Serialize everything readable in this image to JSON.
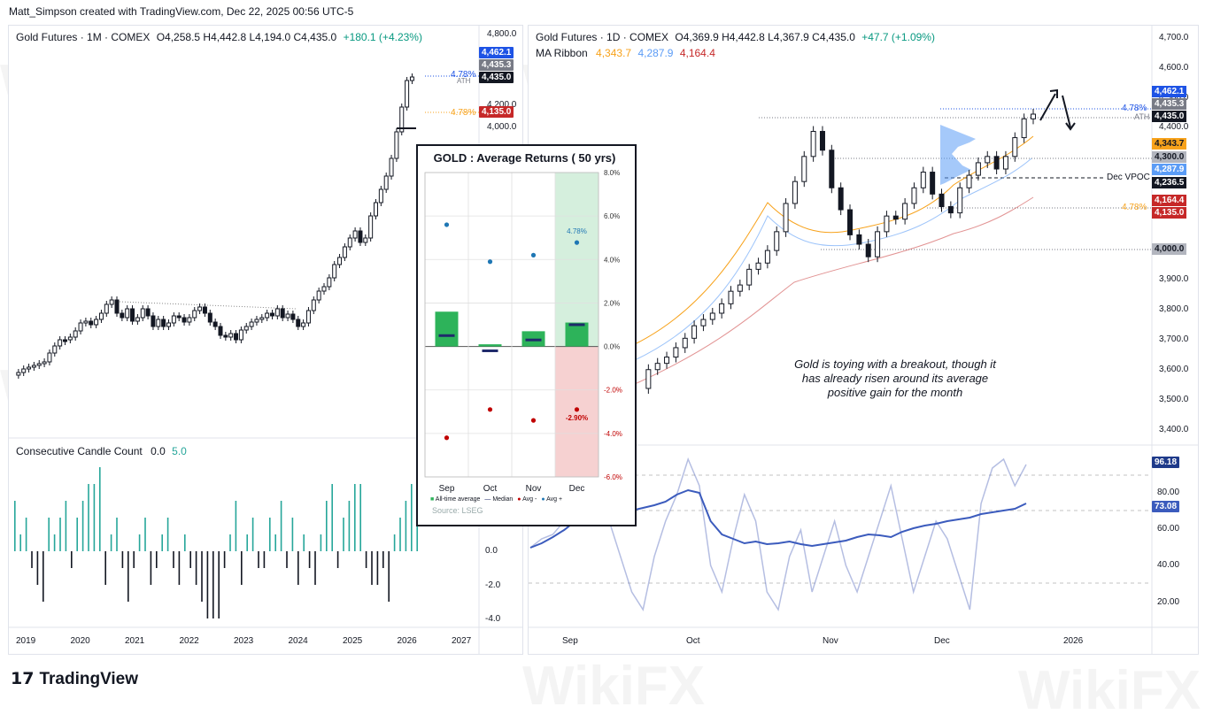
{
  "attribution": "Matt_Simpson created with TradingView.com, Dec 22, 2025 00:56 UTC-5",
  "footer": {
    "brand": "TradingView"
  },
  "watermark_text": "WikiFX",
  "left_chart": {
    "legend": {
      "symbol": "Gold Futures · 1M · COMEX",
      "ohlc": "O4,258.5  H4,442.8  L4,194.0  C4,435.0",
      "change": "+180.1 (+4.23%)"
    },
    "price_axis": [
      "4,800.0",
      "4,200.0",
      "4,000.0"
    ],
    "tags": [
      {
        "label": "4,462.1",
        "color": "#1e53e5",
        "text": "#ffffff"
      },
      {
        "label": "4,435.3",
        "color": "#787b86",
        "text": "#ffffff"
      },
      {
        "label": "4,435.0",
        "color": "#131722",
        "text": "#ffffff"
      },
      {
        "label": "4,135.0",
        "color": "#c62828",
        "text": "#ffffff"
      }
    ],
    "annotations": {
      "pct_blue": "4.78%",
      "ath": "ATH",
      "pct_orange": "4.78%"
    },
    "time_axis": [
      "2019",
      "2020",
      "2021",
      "2022",
      "2023",
      "2024",
      "2025",
      "2026",
      "2027"
    ],
    "indicator": {
      "title": "Consecutive Candle Count",
      "values_text": [
        "0.0",
        "5.0"
      ],
      "axis": [
        "0.0",
        "-2.0",
        "-4.0"
      ]
    }
  },
  "right_chart": {
    "legend": {
      "symbol": "Gold Futures · 1D · COMEX",
      "ohlc": "O4,369.9  H4,442.8  L4,367.9  C4,435.0",
      "change": "+47.7 (+1.09%)"
    },
    "ribbon": {
      "label": "MA Ribbon",
      "v1": "4,343.7",
      "v2": "4,287.9",
      "v3": "4,164.4"
    },
    "price_axis": [
      "4,700.0",
      "4,600.0",
      "4,500.0",
      "4,400.0",
      "3,900.0",
      "3,800.0",
      "3,700.0",
      "3,600.0",
      "3,500.0",
      "3,400.0"
    ],
    "tags": [
      {
        "label": "4,462.1",
        "color": "#1e53e5",
        "text": "#ffffff"
      },
      {
        "label": "4,435.3",
        "color": "#787b86",
        "text": "#ffffff"
      },
      {
        "label": "4,435.0",
        "color": "#131722",
        "text": "#ffffff"
      },
      {
        "label": "4,343.7",
        "color": "#f7a21b",
        "text": "#131722"
      },
      {
        "label": "4,300.0",
        "color": "#b2b5be",
        "text": "#131722"
      },
      {
        "label": "4,287.9",
        "color": "#5b9cf6",
        "text": "#ffffff"
      },
      {
        "label": "4,236.5",
        "color": "#131722",
        "text": "#ffffff"
      },
      {
        "label": "4,164.4",
        "color": "#c62828",
        "text": "#ffffff"
      },
      {
        "label": "4,135.0",
        "color": "#c62828",
        "text": "#ffffff"
      },
      {
        "label": "4,000.0",
        "color": "#b2b5be",
        "text": "#131722"
      }
    ],
    "annotations": {
      "pct_blue": "4.78%",
      "ath": "ATH",
      "dec_vpoc": "Dec VPOC",
      "pct_orange": "4.78%"
    },
    "note": [
      "Gold is toying with a breakout, though it",
      "has already risen around its average",
      "positive gain for the month"
    ],
    "time_axis": [
      "Sep",
      "Oct",
      "Nov",
      "Dec",
      "2026"
    ],
    "oscillator": {
      "axis": [
        "80.00",
        "60.00",
        "40.00",
        "20.00"
      ],
      "tags": [
        "96.18",
        "73.08"
      ]
    }
  },
  "chart_data": [
    {
      "type": "bar",
      "title": "GOLD : Average Returns ( 50 yrs)",
      "categories": [
        "Sep",
        "Oct",
        "Nov",
        "Dec"
      ],
      "ylim": [
        -6.0,
        8.0
      ],
      "yticks": [
        "8.0%",
        "6.0%",
        "4.0%",
        "2.0%",
        "0.0%",
        "-2.0%",
        "-4.0%",
        "-6.0%"
      ],
      "series": [
        {
          "name": "All-time average",
          "values": [
            1.6,
            0.1,
            0.7,
            1.1
          ]
        },
        {
          "name": "Median",
          "values": [
            0.5,
            -0.2,
            0.3,
            1.0
          ]
        },
        {
          "name": "Avg -",
          "values": [
            -4.2,
            -2.9,
            -3.4,
            -2.9
          ]
        },
        {
          "name": "Avg +",
          "values": [
            5.6,
            3.9,
            4.2,
            4.78
          ]
        }
      ],
      "labels": {
        "dec_pos": "4.78%",
        "dec_neg": "-2.90%"
      },
      "source": "Source: LSEG",
      "colors": {
        "bar": "#2db35a",
        "median": "#1f2a6b",
        "neg": "#c00000",
        "pos": "#1f77b4",
        "pos_zone": "#d5efdd",
        "neg_zone": "#f6d1d1"
      }
    },
    {
      "type": "line",
      "title": "",
      "x_period": "Sep 2025 – Dec 2025 (daily)",
      "series": [
        {
          "name": "Close",
          "values": [
            3560,
            3620,
            3640,
            3660,
            3690,
            3720,
            3760,
            3780,
            3800,
            3830,
            3870,
            3890,
            3940,
            3960,
            4000,
            4060,
            4150,
            4220,
            4300,
            4380,
            4320,
            4200,
            4130,
            4050,
            4020,
            3980,
            4060,
            4110,
            4100,
            4150,
            4200,
            4250,
            4180,
            4140,
            4120,
            4200,
            4240,
            4280,
            4300,
            4260,
            4300,
            4360,
            4420,
            4435
          ]
        }
      ],
      "ribbon_last": [
        4343.7,
        4287.9,
        4164.4
      ]
    }
  ]
}
